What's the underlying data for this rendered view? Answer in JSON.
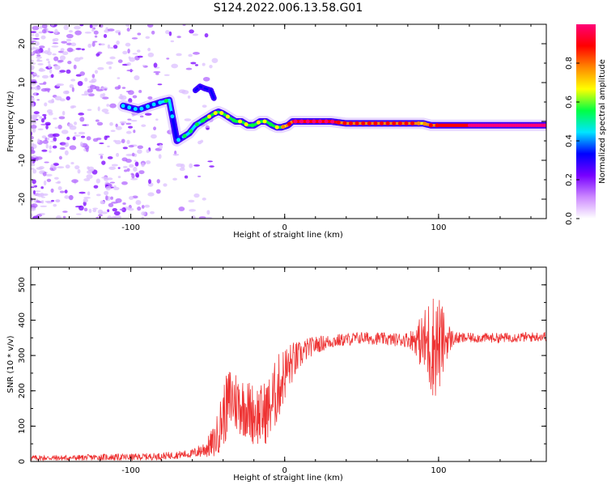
{
  "figure": {
    "title": "S124.2022.006.13.58.G01"
  },
  "chart_data": [
    {
      "type": "heatmap",
      "xlabel": "Height of straight line (km)",
      "ylabel": "Frequency (Hz)",
      "xlim": [
        -165,
        170
      ],
      "ylim": [
        -25,
        25
      ],
      "x_ticks": [
        -100,
        0,
        100
      ],
      "y_ticks": [
        -20,
        -10,
        0,
        10,
        20
      ],
      "grid": false,
      "colorbar": {
        "label": "Normalized spectral amplitude",
        "range": [
          0.0,
          1.0
        ],
        "ticks": [
          0.0,
          0.2,
          0.4,
          0.6,
          0.8
        ],
        "tick_labels": [
          "0.0",
          "0.2",
          "0.4",
          "0.6",
          "0.8"
        ],
        "colormap": [
          "#ffffff",
          "#cc88ff",
          "#7700ff",
          "#0000ff",
          "#00e5ff",
          "#00ff44",
          "#ffff00",
          "#ff8800",
          "#ff0000",
          "#ff0077"
        ]
      },
      "ridge": {
        "x": [
          -105,
          -95,
          -88,
          -80,
          -75,
          -70,
          -66,
          -62,
          -58,
          -54,
          -50,
          -46,
          -43,
          -40,
          -36,
          -32,
          -28,
          -24,
          -20,
          -16,
          -12,
          -8,
          -5,
          -2,
          2,
          5,
          10,
          20,
          30,
          40,
          50,
          60,
          70,
          80,
          90,
          95,
          100,
          110,
          120,
          130,
          140,
          150,
          160,
          170
        ],
        "y": [
          4,
          3,
          4,
          5,
          5.5,
          -5,
          -4,
          -3,
          -1,
          0,
          1,
          2,
          2.5,
          2,
          1,
          0,
          0,
          -1,
          -1,
          0,
          0,
          -1,
          -1.5,
          -1.5,
          -1,
          0,
          0,
          0,
          0,
          -0.5,
          -0.5,
          -0.5,
          -0.5,
          -0.5,
          -0.5,
          -1,
          -1,
          -1,
          -1,
          -1,
          -1,
          -1,
          -1,
          -1
        ],
        "amplitude": [
          0.3,
          0.3,
          0.35,
          0.4,
          0.4,
          0.35,
          0.4,
          0.4,
          0.45,
          0.5,
          0.5,
          0.55,
          0.6,
          0.55,
          0.5,
          0.5,
          0.55,
          0.5,
          0.5,
          0.55,
          0.5,
          0.5,
          0.55,
          0.6,
          0.75,
          0.85,
          0.95,
          0.9,
          0.85,
          0.8,
          0.8,
          0.75,
          0.75,
          0.75,
          0.7,
          0.75,
          0.85,
          0.9,
          0.95,
          0.95,
          0.95,
          0.95,
          0.95,
          0.95
        ]
      },
      "upper_branch": {
        "x": [
          -58,
          -55,
          -52,
          -48,
          -46
        ],
        "y": [
          8,
          9,
          8.5,
          8,
          6
        ],
        "amplitude": [
          0.3,
          0.35,
          0.35,
          0.3,
          0.3
        ]
      }
    },
    {
      "type": "line",
      "xlabel": "Height of straight line (km)",
      "ylabel": "SNR (10 * v/v)",
      "xlim": [
        -165,
        170
      ],
      "ylim": [
        0,
        550
      ],
      "x_ticks": [
        -100,
        0,
        100
      ],
      "y_ticks": [
        0,
        100,
        200,
        300,
        400,
        500
      ],
      "grid": false,
      "color": "#ee3333",
      "series": [
        {
          "x": [
            -165,
            -140,
            -120,
            -100,
            -80,
            -60,
            -55,
            -50,
            -45,
            -40,
            -35,
            -30,
            -25,
            -20,
            -15,
            -10,
            -5,
            0,
            5,
            10,
            15,
            20,
            30,
            40,
            50,
            60,
            70,
            80,
            85,
            90,
            95,
            100,
            105,
            110,
            120,
            130,
            140,
            150,
            160,
            170
          ],
          "y": [
            10,
            10,
            12,
            12,
            15,
            22,
            30,
            40,
            60,
            130,
            180,
            165,
            150,
            135,
            130,
            150,
            200,
            250,
            280,
            300,
            320,
            330,
            340,
            345,
            350,
            348,
            345,
            345,
            345,
            335,
            330,
            330,
            345,
            348,
            350,
            350,
            350,
            352,
            352,
            355
          ],
          "noise_amplitude": [
            8,
            8,
            9,
            10,
            10,
            12,
            20,
            30,
            50,
            90,
            100,
            90,
            85,
            90,
            90,
            95,
            100,
            80,
            60,
            40,
            30,
            25,
            20,
            18,
            18,
            18,
            18,
            22,
            40,
            90,
            150,
            150,
            60,
            18,
            14,
            14,
            14,
            14,
            14,
            14
          ]
        }
      ]
    }
  ]
}
